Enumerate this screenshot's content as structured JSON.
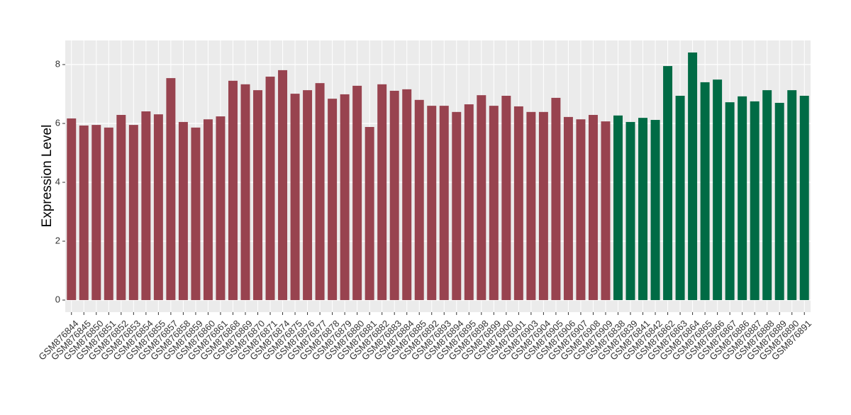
{
  "chart_data": {
    "type": "bar",
    "y_label": "Expression Level",
    "categories": [
      "GSM876844",
      "GSM876845",
      "GSM876850",
      "GSM876851",
      "GSM876852",
      "GSM876853",
      "GSM876854",
      "GSM876855",
      "GSM876857",
      "GSM876858",
      "GSM876859",
      "GSM876860",
      "GSM876861",
      "GSM876868",
      "GSM876869",
      "GSM876870",
      "GSM876871",
      "GSM876874",
      "GSM876875",
      "GSM876876",
      "GSM876877",
      "GSM876878",
      "GSM876879",
      "GSM876880",
      "GSM876881",
      "GSM876882",
      "GSM876883",
      "GSM876884",
      "GSM876885",
      "GSM876892",
      "GSM876893",
      "GSM876894",
      "GSM876895",
      "GSM876898",
      "GSM876899",
      "GSM876900",
      "GSM876901",
      "GSM876903",
      "GSM876904",
      "GSM876905",
      "GSM876906",
      "GSM876907",
      "GSM876908",
      "GSM876909",
      "GSM876838",
      "GSM876839",
      "GSM876841",
      "GSM876842",
      "GSM876862",
      "GSM876863",
      "GSM876864",
      "GSM876865",
      "GSM876866",
      "GSM876867",
      "GSM876886",
      "GSM876887",
      "GSM876888",
      "GSM876889",
      "GSM876890",
      "GSM876891"
    ],
    "values": [
      6.17,
      5.93,
      5.95,
      5.86,
      6.29,
      5.95,
      6.41,
      6.31,
      7.54,
      6.05,
      5.86,
      6.14,
      6.24,
      7.45,
      7.33,
      7.13,
      7.59,
      7.81,
      7.01,
      7.13,
      7.37,
      6.84,
      6.99,
      7.28,
      5.88,
      7.33,
      7.11,
      7.16,
      6.8,
      6.6,
      6.6,
      6.39,
      6.65,
      6.96,
      6.6,
      6.94,
      6.58,
      6.39,
      6.39,
      6.87,
      6.22,
      6.14,
      6.29,
      6.07,
      6.27,
      6.05,
      6.19,
      6.12,
      7.95,
      6.94,
      8.41,
      7.4,
      7.49,
      6.72,
      6.92,
      6.75,
      7.13,
      6.7,
      7.13,
      6.94
    ],
    "colors": [
      "#98434f",
      "#98434f",
      "#98434f",
      "#98434f",
      "#98434f",
      "#98434f",
      "#98434f",
      "#98434f",
      "#98434f",
      "#98434f",
      "#98434f",
      "#98434f",
      "#98434f",
      "#98434f",
      "#98434f",
      "#98434f",
      "#98434f",
      "#98434f",
      "#98434f",
      "#98434f",
      "#98434f",
      "#98434f",
      "#98434f",
      "#98434f",
      "#98434f",
      "#98434f",
      "#98434f",
      "#98434f",
      "#98434f",
      "#98434f",
      "#98434f",
      "#98434f",
      "#98434f",
      "#98434f",
      "#98434f",
      "#98434f",
      "#98434f",
      "#98434f",
      "#98434f",
      "#98434f",
      "#98434f",
      "#98434f",
      "#98434f",
      "#98434f",
      "#006b45",
      "#006b45",
      "#006b45",
      "#006b45",
      "#006b45",
      "#006b45",
      "#006b45",
      "#006b45",
      "#006b45",
      "#006b45",
      "#006b45",
      "#006b45",
      "#006b45",
      "#006b45",
      "#006b45",
      "#006b45"
    ],
    "ylim": [
      -0.41,
      8.82
    ],
    "yticks": [
      0,
      2,
      4,
      6,
      8
    ],
    "grid": true
  }
}
